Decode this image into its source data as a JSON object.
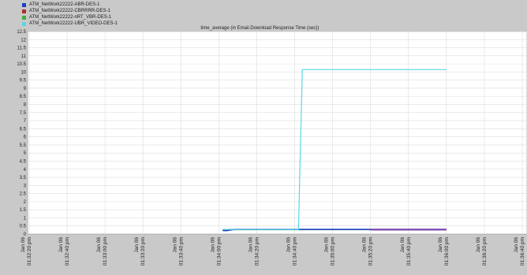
{
  "colors": {
    "frame_bg": "#c9c9c9",
    "plot_bg": "#ffffff",
    "grid": "#dddddd"
  },
  "chart_data": {
    "type": "line",
    "title": "time_average (in Email.Download Response Time (sec))",
    "xlabel": "",
    "ylabel": "",
    "ylim": [
      0,
      12.5
    ],
    "y_ticks": [
      "0",
      "0.5",
      "1",
      "1.5",
      "2",
      "2.5",
      "3",
      "3.5",
      "4",
      "4.5",
      "5",
      "5.5",
      "6",
      "6.5",
      "7",
      "7.5",
      "8",
      "8.5",
      "9",
      "9.5",
      "10",
      "10.5",
      "11",
      "11.5",
      "12",
      "12.5"
    ],
    "x_ticks": [
      {
        "date": "Jan 06",
        "time": "01:32:20 pm"
      },
      {
        "date": "Jan 06",
        "time": "01:32:40 pm"
      },
      {
        "date": "Jan 06",
        "time": "01:33:00 pm"
      },
      {
        "date": "Jan 06",
        "time": "01:33:20 pm"
      },
      {
        "date": "Jan 06",
        "time": "01:33:40 pm"
      },
      {
        "date": "Jan 06",
        "time": "01:34:00 pm"
      },
      {
        "date": "Jan 06",
        "time": "01:34:20 pm"
      },
      {
        "date": "Jan 06",
        "time": "01:34:40 pm"
      },
      {
        "date": "Jan 06",
        "time": "01:35:00 pm"
      },
      {
        "date": "Jan 06",
        "time": "01:35:20 pm"
      },
      {
        "date": "Jan 06",
        "time": "01:35:40 pm"
      },
      {
        "date": "Jan 06",
        "time": "01:36:00 pm"
      },
      {
        "date": "Jan 06",
        "time": "01:36:20 pm"
      },
      {
        "date": "Jan 06",
        "time": "01:36:40 pm"
      }
    ],
    "series": [
      {
        "name": "ATM_NetWork22222-ABR-DES-1",
        "color": "#1f3fbf",
        "x": [
          "01:34:02 pm",
          "01:34:04 pm",
          "01:34:08 pm",
          "01:34:40 pm",
          "01:35:20 pm",
          "01:36:00 pm"
        ],
        "y": [
          0.22,
          0.21,
          0.28,
          0.28,
          0.28,
          0.28
        ]
      },
      {
        "name": "ATM_NetWork22222-CBRRRR-DES-1",
        "color": "#a8322a",
        "x": [
          "01:35:20 pm",
          "01:36:00 pm"
        ],
        "y": [
          0.27,
          0.27
        ]
      },
      {
        "name": "ATM_NetWork22222-nRT_VBR-DES-1",
        "color": "#3fae49",
        "x": [
          "01:34:02 pm",
          "01:36:00 pm"
        ],
        "y": [
          0.27,
          0.27
        ]
      },
      {
        "name": "ATM_NetWork22222-UBR_VIDEO-DES-1",
        "color": "#58d8e6",
        "x": [
          "01:34:02 pm",
          "01:34:42 pm",
          "01:34:44 pm",
          "01:36:00 pm"
        ],
        "y": [
          0.28,
          0.28,
          10.15,
          10.15
        ]
      }
    ],
    "overlay_segment": {
      "color": "#7a3cb0",
      "x": [
        "01:35:20 pm",
        "01:36:00 pm"
      ],
      "y": [
        0.27,
        0.27
      ]
    },
    "grid": true,
    "legend_position": "top-left"
  }
}
